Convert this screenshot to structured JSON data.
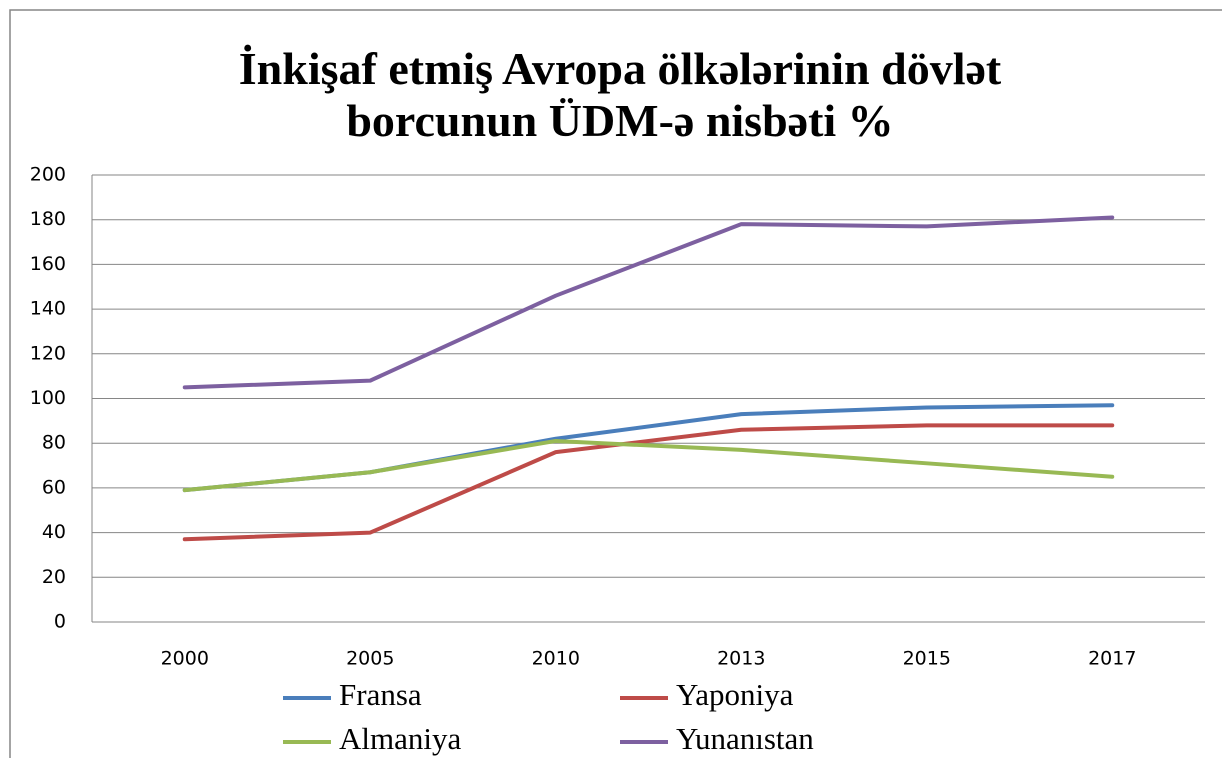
{
  "chart_data": {
    "type": "line",
    "title": [
      "İnkişaf etmiş Avropa ölkələrinin dövlət",
      "borcunun  ÜDM-ə nisbəti  %"
    ],
    "categories": [
      "2000",
      "2005",
      "2010",
      "2013",
      "2015",
      "2017"
    ],
    "series": [
      {
        "name": "Fransa",
        "color": "#4a7ebb",
        "values": [
          59,
          67,
          82,
          93,
          96,
          97
        ]
      },
      {
        "name": "Yaponiya",
        "color": "#be4b48",
        "values": [
          37,
          40,
          76,
          86,
          88,
          88
        ]
      },
      {
        "name": "Almaniya",
        "color": "#98b954",
        "values": [
          59,
          67,
          81,
          77,
          71,
          65
        ]
      },
      {
        "name": "Yunanıstan",
        "color": "#7d60a0",
        "values": [
          105,
          108,
          146,
          178,
          177,
          181
        ]
      }
    ],
    "ylim": [
      0,
      200
    ],
    "yticks": [
      0,
      20,
      40,
      60,
      80,
      100,
      120,
      140,
      160,
      180,
      200
    ],
    "grid": true
  }
}
